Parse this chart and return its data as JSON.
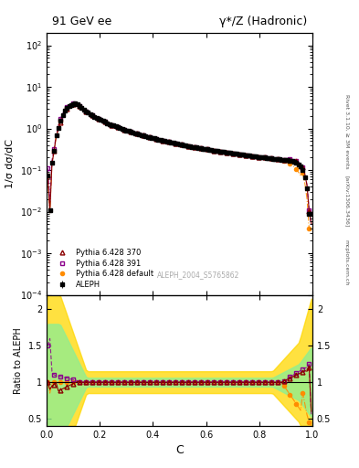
{
  "title_left": "91 GeV ee",
  "title_right": "γ*/Z (Hadronic)",
  "ylabel_main": "1/σ dσ/dC",
  "ylabel_ratio": "Ratio to ALEPH",
  "xlabel": "C",
  "right_label": "Rivet 3.1.10, ≥ 3M events",
  "watermark": "ALEPH_2004_S5765862",
  "arxiv_label": "[arXiv:1306.3436]",
  "mcplots_label": "mcplots.cern.ch",
  "ylim_main": [
    0.0001,
    200
  ],
  "ylim_ratio": [
    0.4,
    2.2
  ],
  "xlim": [
    0.0,
    1.0
  ],
  "legend_entries": [
    "ALEPH",
    "Pythia 6.428 370",
    "Pythia 6.428 391",
    "Pythia 6.428 default"
  ],
  "colors": {
    "aleph": "#000000",
    "pythia370": "#8B0000",
    "pythia391": "#8B008B",
    "pythiadef": "#FF8C00",
    "band_green": "#00CC00",
    "band_green_light": "#90EE90",
    "band_yellow": "#FFD700"
  },
  "figsize": [
    3.93,
    5.12
  ],
  "dpi": 100
}
